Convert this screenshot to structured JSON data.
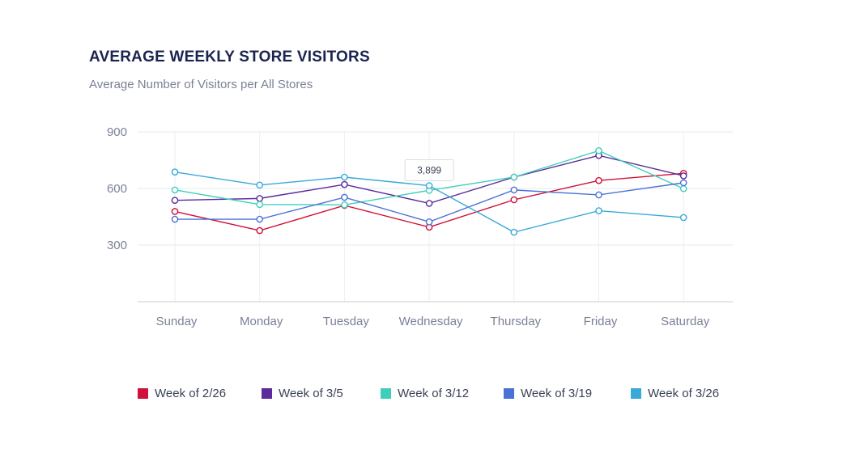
{
  "header": {
    "title": "AVERAGE WEEKLY STORE VISITORS",
    "subtitle": "Average Number of Visitors per All Stores"
  },
  "chart_data": {
    "type": "line",
    "title": "AVERAGE WEEKLY STORE VISITORS",
    "subtitle": "Average Number of Visitors per All Stores",
    "categories": [
      "Sunday",
      "Monday",
      "Tuesday",
      "Wednesday",
      "Thursday",
      "Friday",
      "Saturday"
    ],
    "y_ticks": [
      300,
      600,
      900
    ],
    "ylim": [
      0,
      900
    ],
    "grid": true,
    "legend_position": "bottom",
    "series": [
      {
        "name": "Week of 2/26",
        "color": "#d0103a",
        "values": [
          478,
          377,
          510,
          395,
          540,
          642,
          680
        ]
      },
      {
        "name": "Week of 3/5",
        "color": "#5b2a9c",
        "values": [
          537,
          547,
          621,
          521,
          660,
          775,
          667
        ]
      },
      {
        "name": "Week of 3/12",
        "color": "#3ecfba",
        "values": [
          592,
          515,
          513,
          590,
          660,
          800,
          599
        ]
      },
      {
        "name": "Week of 3/19",
        "color": "#4a72d6",
        "values": [
          437,
          437,
          553,
          423,
          592,
          566,
          630
        ]
      },
      {
        "name": "Week of 3/26",
        "color": "#38a9d9",
        "values": [
          687,
          618,
          660,
          615,
          368,
          482,
          446
        ]
      }
    ],
    "tooltip": {
      "text": "3,899",
      "category": "Wednesday",
      "series": "Week of 3/26"
    }
  }
}
